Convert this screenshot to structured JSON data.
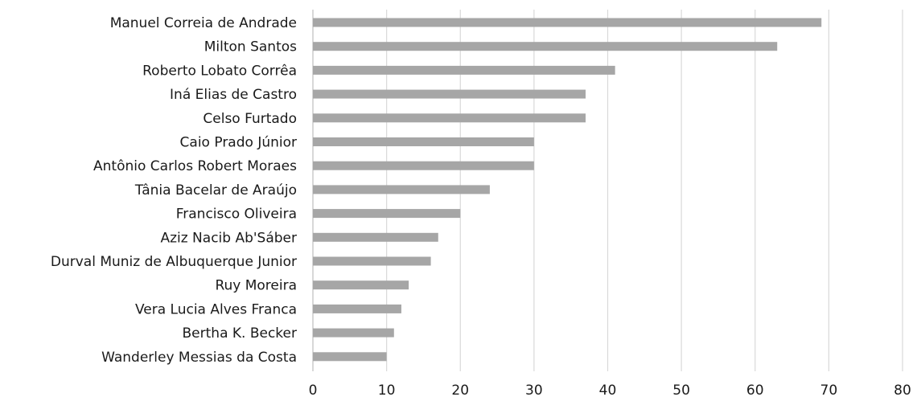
{
  "chart_data": {
    "type": "bar",
    "orientation": "horizontal",
    "title": "",
    "xlabel": "",
    "ylabel": "",
    "categories": [
      "Manuel Correia de Andrade",
      "Milton Santos",
      "Roberto Lobato Corrêa",
      "Iná Elias de Castro",
      "Celso Furtado",
      "Caio Prado Júnior",
      "Antônio Carlos Robert Moraes",
      "Tânia Bacelar de Araújo",
      "Francisco Oliveira",
      "Aziz Nacib Ab'Sáber",
      "Durval Muniz de Albuquerque Junior",
      "Ruy Moreira",
      "Vera Lucia Alves Franca",
      "Bertha K. Becker",
      "Wanderley Messias da Costa"
    ],
    "values": [
      69,
      63,
      41,
      37,
      37,
      30,
      30,
      24,
      20,
      17,
      16,
      13,
      12,
      11,
      10
    ],
    "xlim": [
      0,
      80
    ],
    "xticks": [
      0,
      10,
      20,
      30,
      40,
      50,
      60,
      70,
      80
    ],
    "grid": true,
    "legend": "none",
    "bar_color": "#a6a6a6",
    "grid_color": "#d9d9d9"
  }
}
